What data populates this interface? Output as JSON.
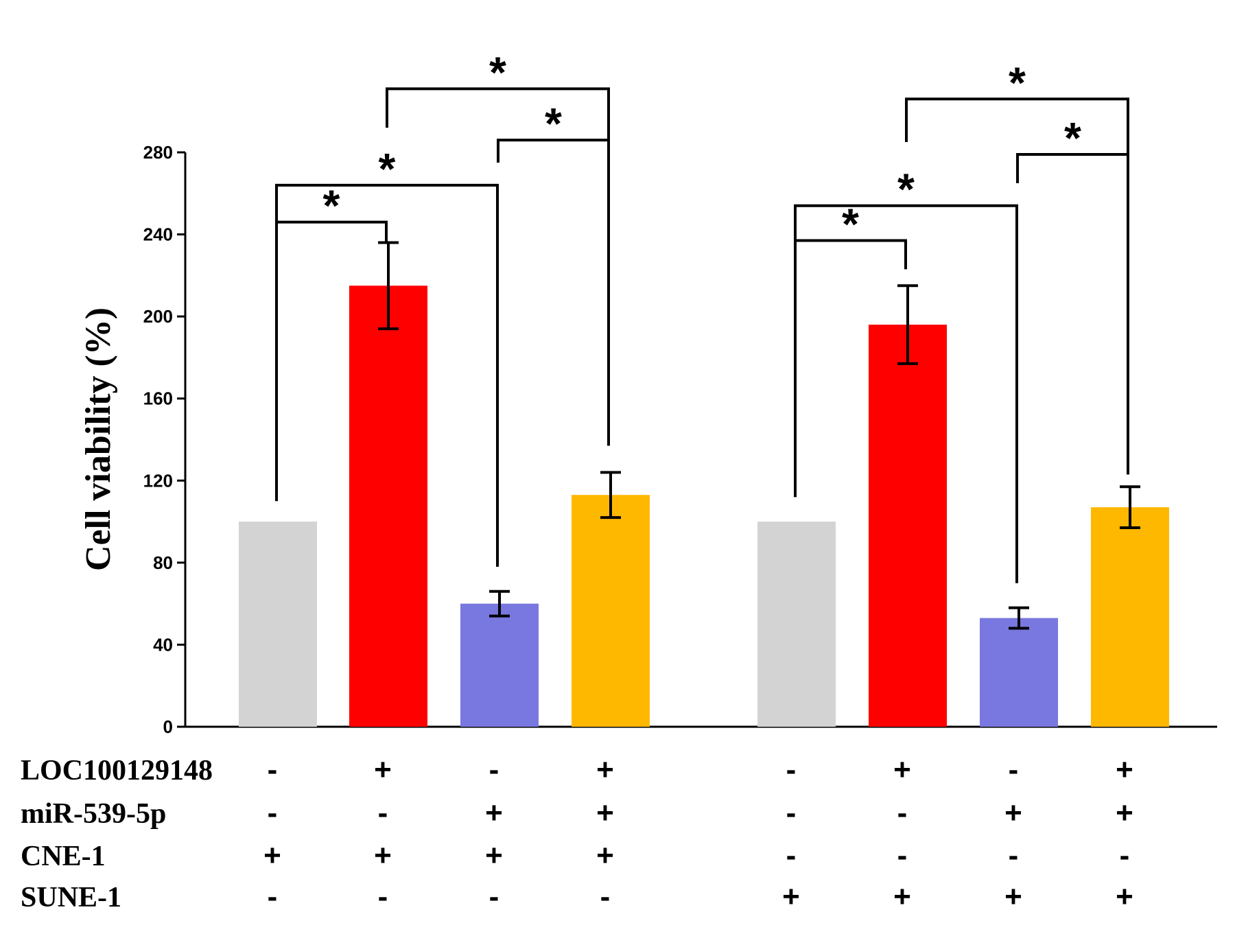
{
  "chart_data": {
    "type": "bar",
    "ylabel": "Cell viability (%)",
    "ylim": [
      0,
      280
    ],
    "yticks": [
      0,
      40,
      80,
      120,
      160,
      200,
      240,
      280
    ],
    "groups": [
      {
        "bars": [
          {
            "value": 100,
            "error": 0,
            "color": "#d3d3d3"
          },
          {
            "value": 215,
            "error": 21,
            "color": "#ff0000"
          },
          {
            "value": 60,
            "error": 6,
            "color": "#7878e0"
          },
          {
            "value": 113,
            "error": 11,
            "color": "#ffb800"
          }
        ]
      },
      {
        "bars": [
          {
            "value": 100,
            "error": 0,
            "color": "#d3d3d3"
          },
          {
            "value": 196,
            "error": 19,
            "color": "#ff0000"
          },
          {
            "value": 53,
            "error": 5,
            "color": "#7878e0"
          },
          {
            "value": 107,
            "error": 10,
            "color": "#ffb800"
          }
        ]
      }
    ],
    "significance": [
      {
        "group": 0,
        "from": 0,
        "to": 1,
        "y": 246,
        "drop_from": 110,
        "drop_to": 236,
        "label": "*"
      },
      {
        "group": 0,
        "from": 0,
        "to": 2,
        "y": 264,
        "drop_from": 110,
        "drop_to": 78,
        "label": "*"
      },
      {
        "group": 0,
        "from": 2,
        "to": 3,
        "y": 286,
        "drop_from": 275,
        "drop_to": 137,
        "label": "*"
      },
      {
        "group": 0,
        "from": 1,
        "to": 3,
        "y": 311,
        "drop_from": 292,
        "drop_to": 137,
        "label": "*"
      },
      {
        "group": 1,
        "from": 0,
        "to": 1,
        "y": 237,
        "drop_from": 112,
        "drop_to": 223,
        "label": "*"
      },
      {
        "group": 1,
        "from": 0,
        "to": 2,
        "y": 254,
        "drop_from": 112,
        "drop_to": 70,
        "label": "*"
      },
      {
        "group": 1,
        "from": 2,
        "to": 3,
        "y": 279,
        "drop_from": 265,
        "drop_to": 123,
        "label": "*"
      },
      {
        "group": 1,
        "from": 1,
        "to": 3,
        "y": 306,
        "drop_from": 285,
        "drop_to": 123,
        "label": "*"
      }
    ],
    "condition_rows": [
      {
        "label": "LOC100129148",
        "signs": [
          "-",
          "+",
          "-",
          "+",
          "-",
          "+",
          "-",
          "+"
        ]
      },
      {
        "label": "miR-539-5p",
        "signs": [
          "-",
          "-",
          "+",
          "+",
          "-",
          "-",
          "+",
          "+"
        ]
      },
      {
        "label": "CNE-1",
        "signs": [
          "+",
          "+",
          "+",
          "+",
          "-",
          "-",
          "-",
          "-"
        ]
      },
      {
        "label": "SUNE-1",
        "signs": [
          "-",
          "-",
          "-",
          "-",
          "+",
          "+",
          "+",
          "+"
        ]
      }
    ]
  }
}
